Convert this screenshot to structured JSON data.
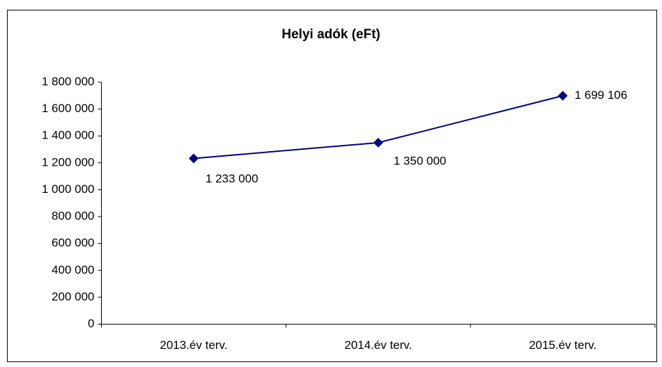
{
  "chart_data": {
    "type": "line",
    "title": "Helyi adók (eFt)",
    "categories": [
      "2013.év terv.",
      "2014.év terv.",
      "2015.év terv."
    ],
    "values": [
      1233000,
      1350000,
      1699106
    ],
    "value_labels": [
      "1 233 000",
      "1 350 000",
      "1 699 106"
    ],
    "color": "#000080",
    "ylim": [
      0,
      1800000
    ],
    "yticks": [
      0,
      {
        "value": 200000,
        "label": "200 000"
      },
      {
        "value": 400000,
        "label": "400 000"
      },
      {
        "value": 600000,
        "label": "600 000"
      },
      {
        "value": 800000,
        "label": "800 000"
      },
      {
        "value": 1000000,
        "label": "1 000 000"
      },
      {
        "value": 1200000,
        "label": "1 200 000"
      },
      {
        "value": 1400000,
        "label": "1 400 000"
      },
      {
        "value": 1600000,
        "label": "1 600 000"
      },
      {
        "value": 1800000,
        "label": "1 800 000"
      }
    ],
    "grid": false
  }
}
